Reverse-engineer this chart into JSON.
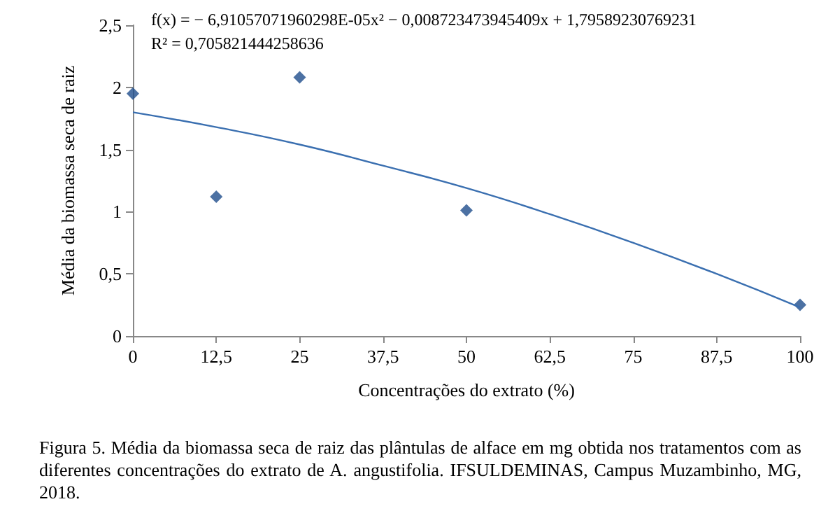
{
  "chart_data": {
    "type": "scatter",
    "xlabel": "Concentrações do extrato (%)",
    "ylabel": "Média da biomassa seca de raiz",
    "series": [
      {
        "color": "#1f4e8c",
        "marker": "diamond",
        "x": [
          0,
          12.5,
          25,
          50,
          100
        ],
        "values": [
          1.95,
          1.12,
          2.08,
          1.01,
          0.25
        ]
      },
      {
        "type": "line",
        "color": "#3a6fb0",
        "marker": "none",
        "x": [
          0,
          12.5,
          25,
          37.5,
          50,
          62.5,
          75,
          87.5,
          100
        ],
        "values": [
          1.8,
          1.68,
          1.54,
          1.37,
          1.19,
          0.98,
          0.75,
          0.5,
          0.23
        ]
      }
    ],
    "xlim": [
      0,
      100
    ],
    "xticks": [
      0,
      {
        "value": 12.5,
        "label": "12,5"
      },
      25,
      {
        "value": 37.5,
        "label": "37,5"
      },
      50,
      {
        "value": 62.5,
        "label": "62,5"
      },
      75,
      {
        "value": 87.5,
        "label": "87,5"
      },
      100
    ],
    "ylim": [
      0,
      2.5
    ],
    "yticks": [
      0,
      {
        "value": 0.5,
        "label": "0,5"
      },
      1,
      {
        "value": 1.5,
        "label": "1,5"
      },
      2,
      {
        "value": 2.5,
        "label": "2,5"
      }
    ],
    "grid": false,
    "annotations": [
      "f(x) = − 6,91057071960298E-05x² − 0,008723473945409x + 1,79589230769231",
      "R² = 0,705821444258636",
      "Figura 5. Média da biomassa seca de raiz das plântulas de alface em mg obtida nos tratamentos com as diferentes concentrações do extrato de A. angustifolia. IFSULDEMINAS, Campus Muzambinho, MG, 2018."
    ]
  }
}
